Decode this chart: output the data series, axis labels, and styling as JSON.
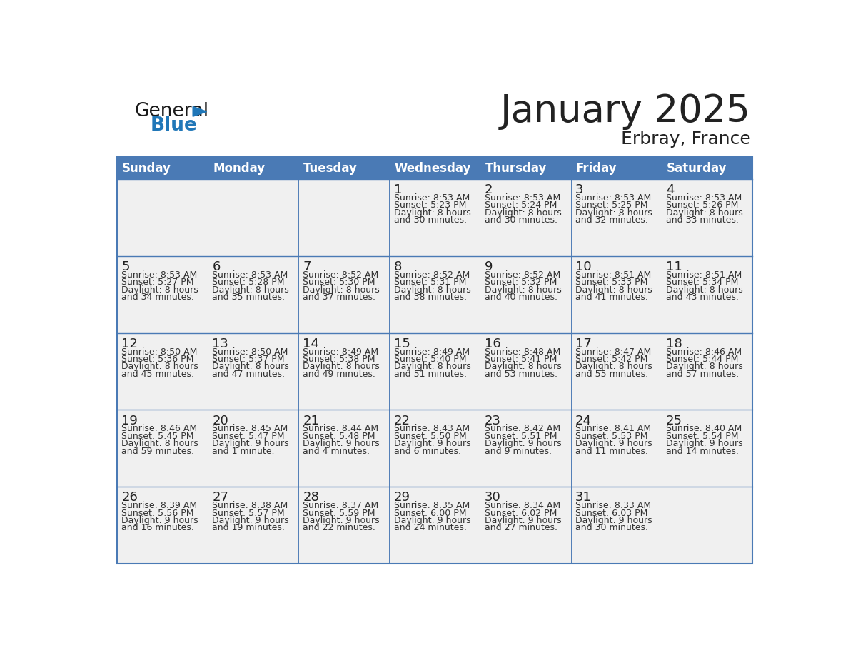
{
  "title": "January 2025",
  "subtitle": "Erbray, France",
  "days_of_week": [
    "Sunday",
    "Monday",
    "Tuesday",
    "Wednesday",
    "Thursday",
    "Friday",
    "Saturday"
  ],
  "header_bg": "#4a7ab5",
  "header_text": "#ffffff",
  "cell_bg": "#f0f0f0",
  "cell_bg_white": "#ffffff",
  "border_color": "#4a7ab5",
  "text_color": "#333333",
  "day_num_color": "#222222",
  "calendar_data": [
    [
      {
        "day": "",
        "sunrise": "",
        "sunset": "",
        "daylight_h": "",
        "daylight_m": ""
      },
      {
        "day": "",
        "sunrise": "",
        "sunset": "",
        "daylight_h": "",
        "daylight_m": ""
      },
      {
        "day": "",
        "sunrise": "",
        "sunset": "",
        "daylight_h": "",
        "daylight_m": ""
      },
      {
        "day": "1",
        "sunrise": "8:53 AM",
        "sunset": "5:23 PM",
        "daylight_h": "8 hours",
        "daylight_m": "and 30 minutes."
      },
      {
        "day": "2",
        "sunrise": "8:53 AM",
        "sunset": "5:24 PM",
        "daylight_h": "8 hours",
        "daylight_m": "and 30 minutes."
      },
      {
        "day": "3",
        "sunrise": "8:53 AM",
        "sunset": "5:25 PM",
        "daylight_h": "8 hours",
        "daylight_m": "and 32 minutes."
      },
      {
        "day": "4",
        "sunrise": "8:53 AM",
        "sunset": "5:26 PM",
        "daylight_h": "8 hours",
        "daylight_m": "and 33 minutes."
      }
    ],
    [
      {
        "day": "5",
        "sunrise": "8:53 AM",
        "sunset": "5:27 PM",
        "daylight_h": "8 hours",
        "daylight_m": "and 34 minutes."
      },
      {
        "day": "6",
        "sunrise": "8:53 AM",
        "sunset": "5:28 PM",
        "daylight_h": "8 hours",
        "daylight_m": "and 35 minutes."
      },
      {
        "day": "7",
        "sunrise": "8:52 AM",
        "sunset": "5:30 PM",
        "daylight_h": "8 hours",
        "daylight_m": "and 37 minutes."
      },
      {
        "day": "8",
        "sunrise": "8:52 AM",
        "sunset": "5:31 PM",
        "daylight_h": "8 hours",
        "daylight_m": "and 38 minutes."
      },
      {
        "day": "9",
        "sunrise": "8:52 AM",
        "sunset": "5:32 PM",
        "daylight_h": "8 hours",
        "daylight_m": "and 40 minutes."
      },
      {
        "day": "10",
        "sunrise": "8:51 AM",
        "sunset": "5:33 PM",
        "daylight_h": "8 hours",
        "daylight_m": "and 41 minutes."
      },
      {
        "day": "11",
        "sunrise": "8:51 AM",
        "sunset": "5:34 PM",
        "daylight_h": "8 hours",
        "daylight_m": "and 43 minutes."
      }
    ],
    [
      {
        "day": "12",
        "sunrise": "8:50 AM",
        "sunset": "5:36 PM",
        "daylight_h": "8 hours",
        "daylight_m": "and 45 minutes."
      },
      {
        "day": "13",
        "sunrise": "8:50 AM",
        "sunset": "5:37 PM",
        "daylight_h": "8 hours",
        "daylight_m": "and 47 minutes."
      },
      {
        "day": "14",
        "sunrise": "8:49 AM",
        "sunset": "5:38 PM",
        "daylight_h": "8 hours",
        "daylight_m": "and 49 minutes."
      },
      {
        "day": "15",
        "sunrise": "8:49 AM",
        "sunset": "5:40 PM",
        "daylight_h": "8 hours",
        "daylight_m": "and 51 minutes."
      },
      {
        "day": "16",
        "sunrise": "8:48 AM",
        "sunset": "5:41 PM",
        "daylight_h": "8 hours",
        "daylight_m": "and 53 minutes."
      },
      {
        "day": "17",
        "sunrise": "8:47 AM",
        "sunset": "5:42 PM",
        "daylight_h": "8 hours",
        "daylight_m": "and 55 minutes."
      },
      {
        "day": "18",
        "sunrise": "8:46 AM",
        "sunset": "5:44 PM",
        "daylight_h": "8 hours",
        "daylight_m": "and 57 minutes."
      }
    ],
    [
      {
        "day": "19",
        "sunrise": "8:46 AM",
        "sunset": "5:45 PM",
        "daylight_h": "8 hours",
        "daylight_m": "and 59 minutes."
      },
      {
        "day": "20",
        "sunrise": "8:45 AM",
        "sunset": "5:47 PM",
        "daylight_h": "9 hours",
        "daylight_m": "and 1 minute."
      },
      {
        "day": "21",
        "sunrise": "8:44 AM",
        "sunset": "5:48 PM",
        "daylight_h": "9 hours",
        "daylight_m": "and 4 minutes."
      },
      {
        "day": "22",
        "sunrise": "8:43 AM",
        "sunset": "5:50 PM",
        "daylight_h": "9 hours",
        "daylight_m": "and 6 minutes."
      },
      {
        "day": "23",
        "sunrise": "8:42 AM",
        "sunset": "5:51 PM",
        "daylight_h": "9 hours",
        "daylight_m": "and 9 minutes."
      },
      {
        "day": "24",
        "sunrise": "8:41 AM",
        "sunset": "5:53 PM",
        "daylight_h": "9 hours",
        "daylight_m": "and 11 minutes."
      },
      {
        "day": "25",
        "sunrise": "8:40 AM",
        "sunset": "5:54 PM",
        "daylight_h": "9 hours",
        "daylight_m": "and 14 minutes."
      }
    ],
    [
      {
        "day": "26",
        "sunrise": "8:39 AM",
        "sunset": "5:56 PM",
        "daylight_h": "9 hours",
        "daylight_m": "and 16 minutes."
      },
      {
        "day": "27",
        "sunrise": "8:38 AM",
        "sunset": "5:57 PM",
        "daylight_h": "9 hours",
        "daylight_m": "and 19 minutes."
      },
      {
        "day": "28",
        "sunrise": "8:37 AM",
        "sunset": "5:59 PM",
        "daylight_h": "9 hours",
        "daylight_m": "and 22 minutes."
      },
      {
        "day": "29",
        "sunrise": "8:35 AM",
        "sunset": "6:00 PM",
        "daylight_h": "9 hours",
        "daylight_m": "and 24 minutes."
      },
      {
        "day": "30",
        "sunrise": "8:34 AM",
        "sunset": "6:02 PM",
        "daylight_h": "9 hours",
        "daylight_m": "and 27 minutes."
      },
      {
        "day": "31",
        "sunrise": "8:33 AM",
        "sunset": "6:03 PM",
        "daylight_h": "9 hours",
        "daylight_m": "and 30 minutes."
      },
      {
        "day": "",
        "sunrise": "",
        "sunset": "",
        "daylight_h": "",
        "daylight_m": ""
      }
    ]
  ],
  "logo_general_color": "#1a1a1a",
  "logo_blue_color": "#2077b8",
  "logo_triangle_color": "#2077b8",
  "title_fontsize": 38,
  "subtitle_fontsize": 18,
  "header_fontsize": 12,
  "daynum_fontsize": 13,
  "cell_text_fontsize": 9
}
